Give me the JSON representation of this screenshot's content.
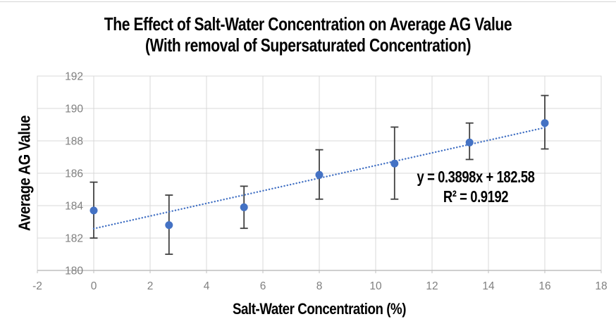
{
  "chart_data": {
    "type": "scatter",
    "title": "The Effect of Salt-Water Concentration on Average AG Value",
    "subtitle": "(With removal of Supersaturated Concentration)",
    "xlabel": "Salt-Water Concentration (%)",
    "ylabel": "Average AG Value",
    "xlim": [
      -2,
      18
    ],
    "ylim": [
      180,
      192
    ],
    "x_ticks": [
      -2,
      0,
      2,
      4,
      6,
      8,
      10,
      12,
      14,
      16,
      18
    ],
    "y_ticks": [
      180,
      182,
      184,
      186,
      188,
      190,
      192
    ],
    "grid": true,
    "legend": "none",
    "series": [
      {
        "name": "Average AG Value",
        "marker": "circle",
        "marker_color": "#4472c4",
        "error_bar_color": "#404040",
        "points": [
          {
            "x": 0,
            "y": 183.7,
            "err_low": 182.0,
            "err_high": 185.45
          },
          {
            "x": 2.67,
            "y": 182.8,
            "err_low": 181.0,
            "err_high": 184.65
          },
          {
            "x": 5.33,
            "y": 183.9,
            "err_low": 182.6,
            "err_high": 185.2
          },
          {
            "x": 8,
            "y": 185.9,
            "err_low": 184.4,
            "err_high": 187.45
          },
          {
            "x": 10.67,
            "y": 186.6,
            "err_low": 184.4,
            "err_high": 188.85
          },
          {
            "x": 13.33,
            "y": 187.9,
            "err_low": 186.85,
            "err_high": 189.1
          },
          {
            "x": 16,
            "y": 189.1,
            "err_low": 187.5,
            "err_high": 190.8
          }
        ]
      }
    ],
    "trendline": {
      "slope": 0.3898,
      "intercept": 182.58,
      "x_start": 0,
      "x_end": 16,
      "style": "dotted",
      "color": "#4472c4",
      "equation_label": "y = 0.3898x + 182.58",
      "r_squared_label": "R² = 0.9192"
    },
    "colors": {
      "gridline": "#d9d9d9",
      "axis_line": "#bfbfbf",
      "tick_label": "#808080",
      "title_text": "#000000",
      "background": "#ffffff"
    }
  }
}
